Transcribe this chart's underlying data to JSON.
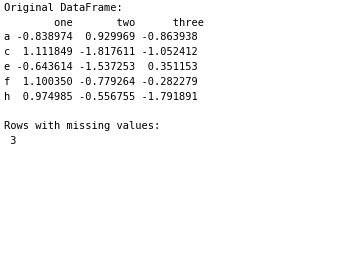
{
  "lines": [
    "Original DataFrame:",
    "        one       two      three",
    "a -0.838974  0.929969 -0.863938",
    "c  1.111849 -1.817611 -1.052412",
    "e -0.643614 -1.537253  0.351153",
    "f  1.100350 -0.779264 -0.282279",
    "h  0.974985 -0.556755 -1.791891",
    "",
    "Rows with missing values:",
    " 3"
  ],
  "bg_color": "#ffffff",
  "text_color": "#000000",
  "font_size": 7.5,
  "font_family": "monospace",
  "fig_width": 3.61,
  "fig_height": 2.71,
  "dpi": 100
}
